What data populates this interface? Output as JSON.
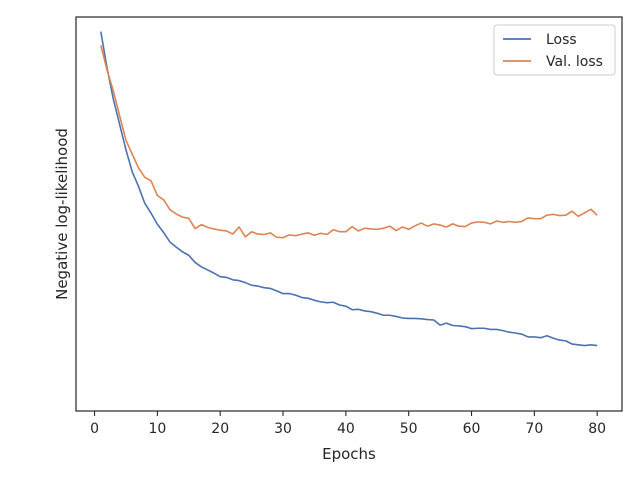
{
  "chart_data": {
    "type": "line",
    "title": "",
    "xlabel": "Epochs",
    "ylabel": "Negative log-likelihood",
    "xlim": [
      -2.95,
      83.95
    ],
    "ylim": [
      0,
      1
    ],
    "xticks": [
      0,
      10,
      20,
      30,
      40,
      50,
      60,
      70,
      80
    ],
    "xtick_labels": [
      "0",
      "10",
      "20",
      "30",
      "40",
      "50",
      "60",
      "70",
      "80"
    ],
    "yticks": [],
    "grid": false,
    "legend_position": "top-right",
    "x": [
      1,
      2,
      3,
      4,
      5,
      6,
      7,
      8,
      9,
      10,
      11,
      12,
      13,
      14,
      15,
      16,
      17,
      18,
      19,
      20,
      21,
      22,
      23,
      24,
      25,
      26,
      27,
      28,
      29,
      30,
      31,
      32,
      33,
      34,
      35,
      36,
      37,
      38,
      39,
      40,
      41,
      42,
      43,
      44,
      45,
      46,
      47,
      48,
      49,
      50,
      51,
      52,
      53,
      54,
      55,
      56,
      57,
      58,
      59,
      60,
      61,
      62,
      63,
      64,
      65,
      66,
      67,
      68,
      69,
      70,
      71,
      72,
      73,
      74,
      75,
      76,
      77,
      78,
      79,
      80
    ],
    "series": [
      {
        "name": "Loss",
        "color": "#4c72b0",
        "values": [
          0.963,
          0.87,
          0.791,
          0.727,
          0.663,
          0.607,
          0.57,
          0.527,
          0.502,
          0.474,
          0.453,
          0.429,
          0.416,
          0.404,
          0.395,
          0.377,
          0.366,
          0.358,
          0.35,
          0.341,
          0.339,
          0.333,
          0.331,
          0.326,
          0.319,
          0.317,
          0.313,
          0.311,
          0.305,
          0.298,
          0.298,
          0.294,
          0.288,
          0.286,
          0.281,
          0.277,
          0.275,
          0.276,
          0.269,
          0.266,
          0.257,
          0.258,
          0.254,
          0.252,
          0.248,
          0.243,
          0.243,
          0.24,
          0.236,
          0.235,
          0.235,
          0.234,
          0.232,
          0.231,
          0.218,
          0.223,
          0.217,
          0.216,
          0.214,
          0.209,
          0.21,
          0.21,
          0.207,
          0.207,
          0.204,
          0.2,
          0.198,
          0.195,
          0.188,
          0.188,
          0.186,
          0.191,
          0.185,
          0.18,
          0.178,
          0.17,
          0.168,
          0.166,
          0.168,
          0.166
        ]
      },
      {
        "name": "Val. loss",
        "color": "#dd8452",
        "values": [
          0.928,
          0.865,
          0.812,
          0.749,
          0.687,
          0.652,
          0.617,
          0.593,
          0.584,
          0.547,
          0.536,
          0.511,
          0.5,
          0.492,
          0.489,
          0.463,
          0.473,
          0.466,
          0.462,
          0.459,
          0.457,
          0.449,
          0.467,
          0.442,
          0.455,
          0.449,
          0.448,
          0.452,
          0.441,
          0.44,
          0.447,
          0.445,
          0.449,
          0.452,
          0.446,
          0.451,
          0.448,
          0.46,
          0.455,
          0.455,
          0.468,
          0.457,
          0.464,
          0.462,
          0.461,
          0.464,
          0.469,
          0.458,
          0.467,
          0.461,
          0.47,
          0.477,
          0.469,
          0.475,
          0.472,
          0.467,
          0.475,
          0.469,
          0.468,
          0.477,
          0.48,
          0.479,
          0.475,
          0.482,
          0.479,
          0.481,
          0.479,
          0.481,
          0.49,
          0.488,
          0.488,
          0.497,
          0.499,
          0.496,
          0.497,
          0.507,
          0.494,
          0.503,
          0.512,
          0.497
        ]
      }
    ]
  }
}
